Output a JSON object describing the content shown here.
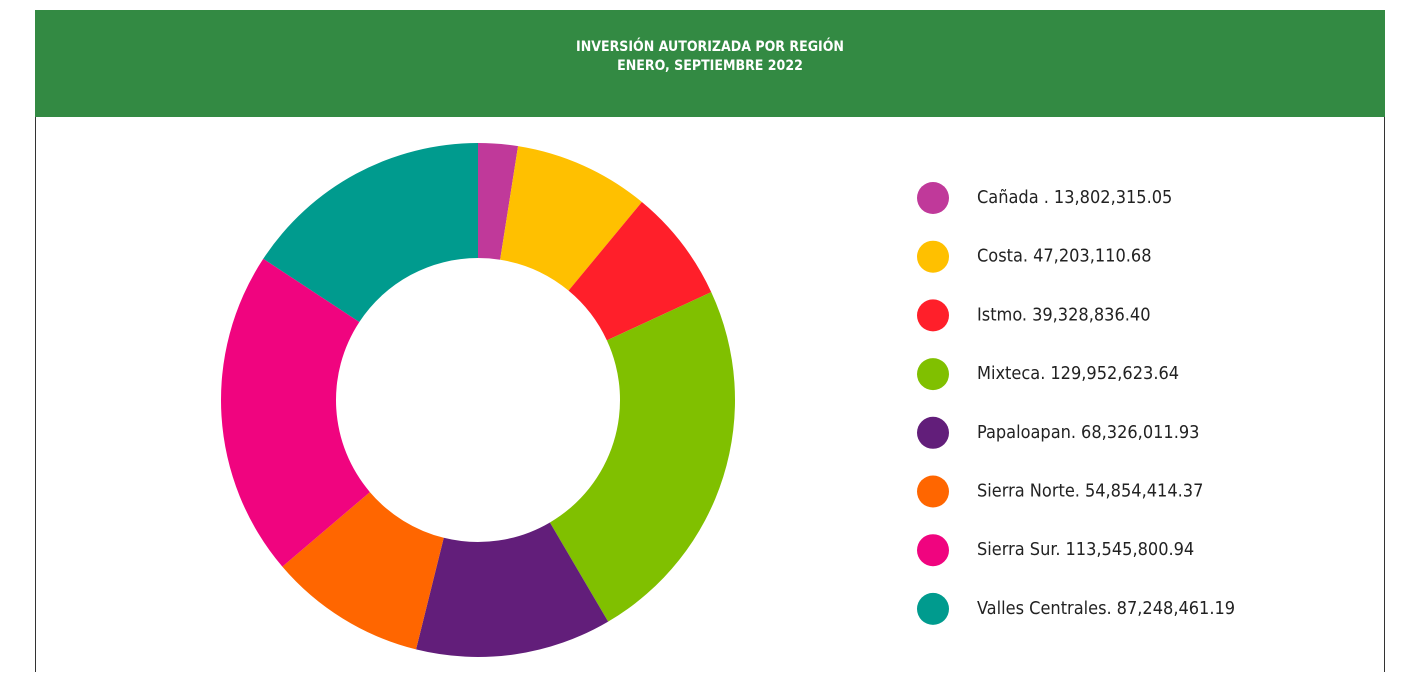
{
  "chart_data": {
    "type": "donut",
    "title": "INVERSIÓN AUTORIZADA POR REGIÓN",
    "subtitle": "ENERO, SEPTIEMBRE 2022",
    "categories": [
      "Cañada .",
      "Costa.",
      "Istmo.",
      "Mixteca.",
      "Papaloapan.",
      "Sierra Norte.",
      "Sierra Sur.",
      "Valles Centrales."
    ],
    "values": [
      13802315.05,
      47203110.68,
      39328836.4,
      129952623.64,
      68326011.93,
      54854414.37,
      113545800.94,
      87248461.19
    ],
    "value_labels": [
      "13,802,315.05",
      "47,203,110.68",
      "39,328,836.40",
      "129,952,623.64",
      "68,326,011.93",
      "54,854,414.37",
      "113,545,800.94",
      "87,248,461.19"
    ],
    "colors": [
      "#c0399a",
      "#ffc000",
      "#ff1f2a",
      "#80c000",
      "#621e7a",
      "#ff6600",
      "#f0047f",
      "#009b8e"
    ],
    "legend": "right"
  }
}
